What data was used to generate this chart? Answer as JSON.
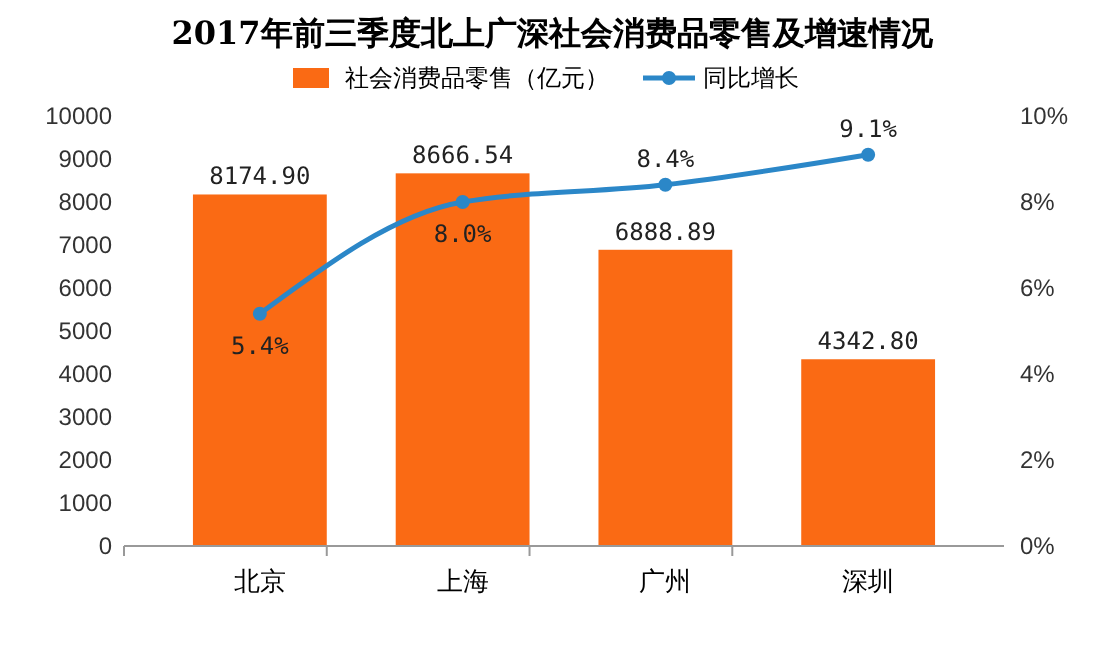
{
  "chart_data": {
    "type": "bar",
    "title": "2017年前三季度北上广深社会消费品零售及增速情况",
    "categories": [
      "北京",
      "上海",
      "广州",
      "深圳"
    ],
    "series": [
      {
        "name": "社会消费品零售（亿元）",
        "color": "#fa6a14",
        "values": [
          8174.9,
          8666.54,
          6888.89,
          4342.8
        ],
        "value_labels": [
          "8174.90",
          "8666.54",
          "6888.89",
          "4342.80"
        ]
      },
      {
        "name": "同比增长",
        "type": "line",
        "axis": "y2",
        "color": "#2b87c8",
        "values": [
          5.4,
          8.0,
          8.4,
          9.1
        ],
        "value_labels": [
          "5.4%",
          "8.0%",
          "8.4%",
          "9.1%"
        ]
      }
    ],
    "ylim": [
      0,
      10000
    ],
    "yticks": [
      0,
      1000,
      2000,
      3000,
      4000,
      5000,
      6000,
      7000,
      8000,
      9000,
      10000
    ],
    "y2lim": [
      0,
      10
    ],
    "y2ticks": [
      {
        "value": 0,
        "label": "0%"
      },
      {
        "value": 2,
        "label": "2%"
      },
      {
        "value": 4,
        "label": "4%"
      },
      {
        "value": 6,
        "label": "6%"
      },
      {
        "value": 8,
        "label": "8%"
      },
      {
        "value": 10,
        "label": "10%"
      }
    ],
    "legend": "top",
    "grid": false,
    "marker": "circle"
  }
}
